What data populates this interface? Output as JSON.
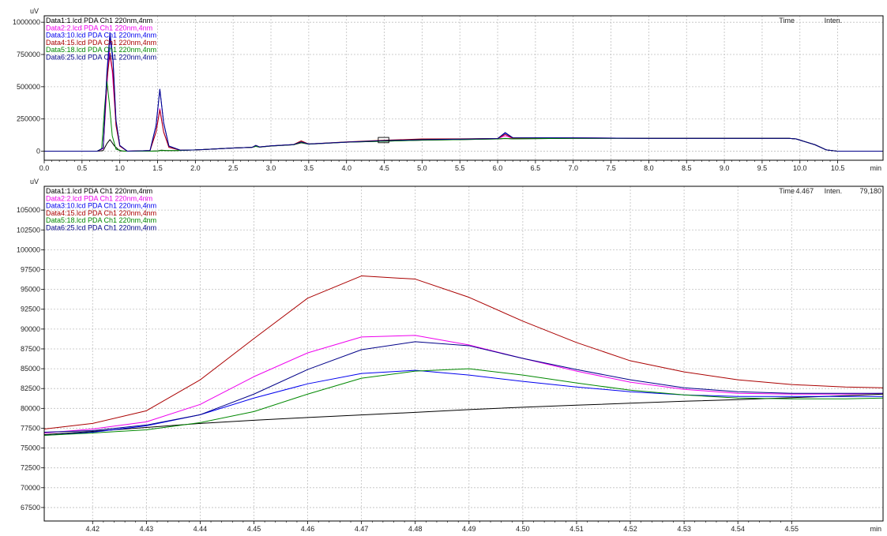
{
  "chart_data": [
    {
      "id": "overview",
      "type": "line",
      "y_unit": "uV",
      "x_unit": "min",
      "xlim": [
        0,
        11.1
      ],
      "ylim": [
        -70000,
        1050000
      ],
      "x_ticks": [
        0.0,
        0.5,
        1.0,
        1.5,
        2.0,
        2.5,
        3.0,
        3.5,
        4.0,
        4.5,
        5.0,
        5.5,
        6.0,
        6.5,
        7.0,
        7.5,
        8.0,
        8.5,
        9.0,
        9.5,
        10.0,
        10.5
      ],
      "x_tick_labels": [
        "0.0",
        "0.5",
        "1.0",
        "1.5",
        "2.0",
        "2.5",
        "3.0",
        "3.5",
        "4.0",
        "4.5",
        "5.0",
        "5.5",
        "6.0",
        "6.5",
        "7.0",
        "7.5",
        "8.0",
        "8.5",
        "9.0",
        "9.5",
        "10.0",
        "10.5"
      ],
      "y_ticks": [
        0,
        250000,
        500000,
        750000,
        1000000
      ],
      "y_tick_labels": [
        "0",
        "250000",
        "500000",
        "750000",
        "1000000"
      ],
      "header": {
        "time_label": "Time",
        "inten_label": "Inten.",
        "time_value": "",
        "inten_value": ""
      },
      "grid": true,
      "legend_position": "top-left",
      "zoom_box": {
        "x": [
          4.42,
          4.56
        ],
        "y": [
          66000,
          107000
        ]
      },
      "series": [
        {
          "name": "Data1:1.lcd PDA Ch1 220nm,4nm",
          "color": "#000000",
          "x": [
            0,
            0.7,
            0.78,
            0.83,
            0.87,
            0.93,
            1.0,
            1.1,
            1.4,
            1.5,
            1.55,
            1.62,
            1.75,
            2.0,
            2.5,
            2.75,
            2.8,
            2.85,
            3.0,
            3.3,
            3.4,
            3.5,
            4.0,
            4.5,
            5.0,
            5.5,
            6.0,
            6.1,
            6.2,
            7.0,
            8.0,
            9.0,
            9.85,
            9.95,
            10.2,
            10.35,
            10.5,
            10.7,
            11.1
          ],
          "y": [
            0,
            0,
            5000,
            60000,
            90000,
            40000,
            3000,
            0,
            0,
            3000,
            8000,
            5000,
            5000,
            10000,
            25000,
            30000,
            38000,
            32000,
            40000,
            50000,
            65000,
            55000,
            70000,
            78000,
            85000,
            90000,
            95000,
            98000,
            96000,
            100000,
            100000,
            100000,
            100000,
            95000,
            50000,
            10000,
            0,
            0,
            0
          ]
        },
        {
          "name": "Data2:2.lcd PDA Ch1 220nm,4nm",
          "color": "#ee00ee",
          "x": [
            0,
            0.7,
            0.78,
            0.83,
            0.86,
            0.9,
            0.95,
            1.0,
            1.1,
            1.4,
            1.48,
            1.53,
            1.58,
            1.65,
            1.8,
            2.0,
            2.5,
            2.75,
            2.8,
            2.85,
            3.0,
            3.3,
            3.4,
            3.5,
            4.0,
            4.5,
            5.0,
            5.5,
            6.0,
            6.1,
            6.2,
            7.0,
            8.0,
            9.0,
            9.85,
            9.95,
            10.2,
            10.35,
            10.5,
            10.7,
            11.1
          ],
          "y": [
            0,
            0,
            20000,
            500000,
            780000,
            620000,
            200000,
            40000,
            0,
            5000,
            150000,
            330000,
            150000,
            30000,
            8000,
            10000,
            25000,
            30000,
            40000,
            32000,
            40000,
            50000,
            70000,
            55000,
            70000,
            80000,
            88000,
            92000,
            97000,
            120000,
            100000,
            102000,
            100000,
            100000,
            100000,
            95000,
            50000,
            10000,
            0,
            0,
            0
          ]
        },
        {
          "name": "Data3:10.lcd PDA Ch1 220nm,4nm",
          "color": "#0000ee",
          "x": [
            0,
            0.7,
            0.78,
            0.83,
            0.87,
            0.91,
            0.95,
            1.0,
            1.1,
            1.4,
            1.48,
            1.53,
            1.58,
            1.65,
            1.8,
            2.0,
            2.5,
            2.75,
            2.8,
            2.85,
            3.0,
            3.3,
            3.4,
            3.5,
            4.0,
            4.5,
            5.0,
            5.5,
            6.0,
            6.1,
            6.2,
            7.0,
            8.0,
            9.0,
            9.85,
            9.95,
            10.2,
            10.35,
            10.5,
            10.7,
            11.1
          ],
          "y": [
            0,
            0,
            25000,
            600000,
            880000,
            700000,
            230000,
            45000,
            0,
            5000,
            200000,
            480000,
            220000,
            40000,
            8000,
            10000,
            25000,
            30000,
            45000,
            33000,
            42000,
            52000,
            72000,
            56000,
            71000,
            81000,
            90000,
            94000,
            98000,
            140000,
            105000,
            104000,
            100000,
            100000,
            100000,
            95000,
            50000,
            10000,
            0,
            0,
            0
          ]
        },
        {
          "name": "Data4:15.lcd PDA Ch1 220nm,4nm",
          "color": "#aa0000",
          "x": [
            0,
            0.7,
            0.78,
            0.83,
            0.87,
            0.91,
            0.95,
            1.0,
            1.1,
            1.4,
            1.48,
            1.53,
            1.58,
            1.65,
            1.8,
            2.0,
            2.5,
            2.75,
            2.8,
            2.85,
            3.0,
            3.3,
            3.4,
            3.5,
            4.0,
            4.5,
            5.0,
            5.5,
            6.0,
            6.1,
            6.2,
            7.0,
            8.0,
            9.0,
            9.85,
            9.95,
            10.2,
            10.35,
            10.5,
            10.7,
            11.1
          ],
          "y": [
            0,
            0,
            25000,
            550000,
            760000,
            600000,
            200000,
            40000,
            0,
            5000,
            150000,
            320000,
            150000,
            30000,
            8000,
            10000,
            25000,
            30000,
            45000,
            33000,
            42000,
            52000,
            80000,
            56000,
            72000,
            85000,
            95000,
            96000,
            99000,
            130000,
            102000,
            103000,
            100000,
            100000,
            100000,
            95000,
            50000,
            10000,
            0,
            0,
            0
          ]
        },
        {
          "name": "Data5:18.lcd PDA Ch1 220nm,4nm",
          "color": "#008800",
          "x": [
            0,
            0.7,
            0.76,
            0.8,
            0.83,
            0.86,
            0.9,
            0.95,
            1.05,
            1.4,
            1.5,
            1.55,
            1.62,
            1.75,
            2.0,
            2.5,
            2.75,
            2.8,
            2.85,
            3.0,
            3.3,
            3.4,
            3.5,
            4.0,
            4.5,
            5.0,
            5.5,
            6.0,
            6.1,
            6.2,
            7.0,
            8.0,
            9.0,
            9.85,
            9.95,
            10.2,
            10.35,
            10.5,
            10.7,
            11.1
          ],
          "y": [
            0,
            0,
            20000,
            350000,
            540000,
            380000,
            120000,
            15000,
            0,
            0,
            2000,
            6000,
            5000,
            5000,
            10000,
            25000,
            30000,
            38000,
            32000,
            40000,
            50000,
            68000,
            55000,
            70000,
            78000,
            86000,
            90000,
            95000,
            100000,
            96000,
            100000,
            100000,
            100000,
            100000,
            95000,
            50000,
            10000,
            0,
            0,
            0
          ]
        },
        {
          "name": "Data6:25.lcd PDA Ch1 220nm,4nm",
          "color": "#000088",
          "x": [
            0,
            0.7,
            0.78,
            0.83,
            0.87,
            0.91,
            0.95,
            1.0,
            1.1,
            1.4,
            1.48,
            1.53,
            1.58,
            1.65,
            1.8,
            2.0,
            2.5,
            2.75,
            2.8,
            2.85,
            3.0,
            3.3,
            3.4,
            3.5,
            4.0,
            4.5,
            5.0,
            5.5,
            6.0,
            6.1,
            6.2,
            7.0,
            8.0,
            9.0,
            9.85,
            9.95,
            10.2,
            10.35,
            10.5,
            10.7,
            11.1
          ],
          "y": [
            0,
            0,
            25000,
            620000,
            920000,
            720000,
            240000,
            45000,
            0,
            5000,
            200000,
            480000,
            220000,
            40000,
            8000,
            10000,
            25000,
            30000,
            45000,
            33000,
            42000,
            52000,
            72000,
            56000,
            71000,
            82000,
            90000,
            94000,
            98000,
            145000,
            105000,
            104000,
            100000,
            100000,
            100000,
            95000,
            50000,
            10000,
            0,
            0,
            0
          ]
        }
      ]
    },
    {
      "id": "zoom",
      "type": "line",
      "y_unit": "uV",
      "x_unit": "min",
      "xlim": [
        4.411,
        4.567
      ],
      "ylim": [
        65800,
        108000
      ],
      "x_ticks": [
        4.42,
        4.43,
        4.44,
        4.45,
        4.46,
        4.47,
        4.48,
        4.49,
        4.5,
        4.51,
        4.52,
        4.53,
        4.54,
        4.55
      ],
      "x_tick_labels": [
        "4.42",
        "4.43",
        "4.44",
        "4.45",
        "4.46",
        "4.47",
        "4.48",
        "4.49",
        "4.50",
        "4.51",
        "4.52",
        "4.53",
        "4.54",
        "4.55"
      ],
      "y_ticks": [
        67500,
        70000,
        72500,
        75000,
        77500,
        80000,
        82500,
        85000,
        87500,
        90000,
        92500,
        95000,
        97500,
        100000,
        102500,
        105000
      ],
      "y_tick_labels": [
        "67500",
        "70000",
        "72500",
        "75000",
        "77500",
        "80000",
        "82500",
        "85000",
        "87500",
        "90000",
        "92500",
        "95000",
        "97500",
        "100000",
        "102500",
        "105000"
      ],
      "header": {
        "time_label": "Time",
        "time_value": "4.467",
        "inten_label": "Inten.",
        "inten_value": "79,180"
      },
      "grid": true,
      "legend_position": "top-left",
      "series": [
        {
          "name": "Data1:1.lcd PDA Ch1 220nm,4nm",
          "color": "#000000",
          "x": [
            4.411,
            4.42,
            4.43,
            4.44,
            4.45,
            4.46,
            4.47,
            4.48,
            4.49,
            4.5,
            4.51,
            4.52,
            4.53,
            4.54,
            4.55,
            4.56,
            4.567
          ],
          "y": [
            76700,
            77100,
            77600,
            78100,
            78500,
            78850,
            79180,
            79500,
            79850,
            80150,
            80400,
            80650,
            80900,
            81100,
            81350,
            81600,
            81800
          ]
        },
        {
          "name": "Data2:2.lcd PDA Ch1 220nm,4nm",
          "color": "#ee00ee",
          "x": [
            4.411,
            4.42,
            4.43,
            4.44,
            4.45,
            4.46,
            4.47,
            4.48,
            4.49,
            4.5,
            4.51,
            4.52,
            4.53,
            4.54,
            4.55,
            4.56,
            4.567
          ],
          "y": [
            76900,
            77400,
            78300,
            80500,
            84000,
            87000,
            89000,
            89200,
            88000,
            86300,
            84700,
            83300,
            82400,
            81900,
            81800,
            81800,
            81900
          ]
        },
        {
          "name": "Data3:10.lcd PDA Ch1 220nm,4nm",
          "color": "#0000ee",
          "x": [
            4.411,
            4.42,
            4.43,
            4.44,
            4.45,
            4.46,
            4.47,
            4.48,
            4.49,
            4.5,
            4.51,
            4.52,
            4.53,
            4.54,
            4.55,
            4.56,
            4.567
          ],
          "y": [
            76600,
            77000,
            77800,
            79200,
            81300,
            83100,
            84400,
            84800,
            84200,
            83400,
            82700,
            82100,
            81700,
            81500,
            81500,
            81500,
            81500
          ]
        },
        {
          "name": "Data4:15.lcd PDA Ch1 220nm,4nm",
          "color": "#aa0000",
          "x": [
            4.411,
            4.42,
            4.43,
            4.44,
            4.45,
            4.46,
            4.47,
            4.48,
            4.49,
            4.5,
            4.51,
            4.52,
            4.53,
            4.54,
            4.55,
            4.56,
            4.567
          ],
          "y": [
            77400,
            78100,
            79700,
            83600,
            88800,
            93900,
            96700,
            96300,
            94000,
            91000,
            88300,
            86000,
            84600,
            83600,
            83000,
            82700,
            82600
          ]
        },
        {
          "name": "Data5:18.lcd PDA Ch1 220nm,4nm",
          "color": "#008800",
          "x": [
            4.411,
            4.42,
            4.43,
            4.44,
            4.45,
            4.46,
            4.47,
            4.48,
            4.49,
            4.5,
            4.51,
            4.52,
            4.53,
            4.54,
            4.55,
            4.56,
            4.567
          ],
          "y": [
            76600,
            76900,
            77300,
            78200,
            79600,
            81800,
            83800,
            84700,
            85000,
            84200,
            83200,
            82300,
            81700,
            81300,
            81200,
            81200,
            81300
          ]
        },
        {
          "name": "Data6:25.lcd PDA Ch1 220nm,4nm",
          "color": "#000088",
          "x": [
            4.411,
            4.42,
            4.43,
            4.44,
            4.45,
            4.46,
            4.47,
            4.48,
            4.49,
            4.5,
            4.51,
            4.52,
            4.53,
            4.54,
            4.55,
            4.56,
            4.567
          ],
          "y": [
            77000,
            77200,
            77900,
            79200,
            81800,
            84900,
            87400,
            88400,
            87900,
            86300,
            84900,
            83600,
            82600,
            82100,
            81900,
            81900,
            81900
          ]
        }
      ]
    }
  ]
}
